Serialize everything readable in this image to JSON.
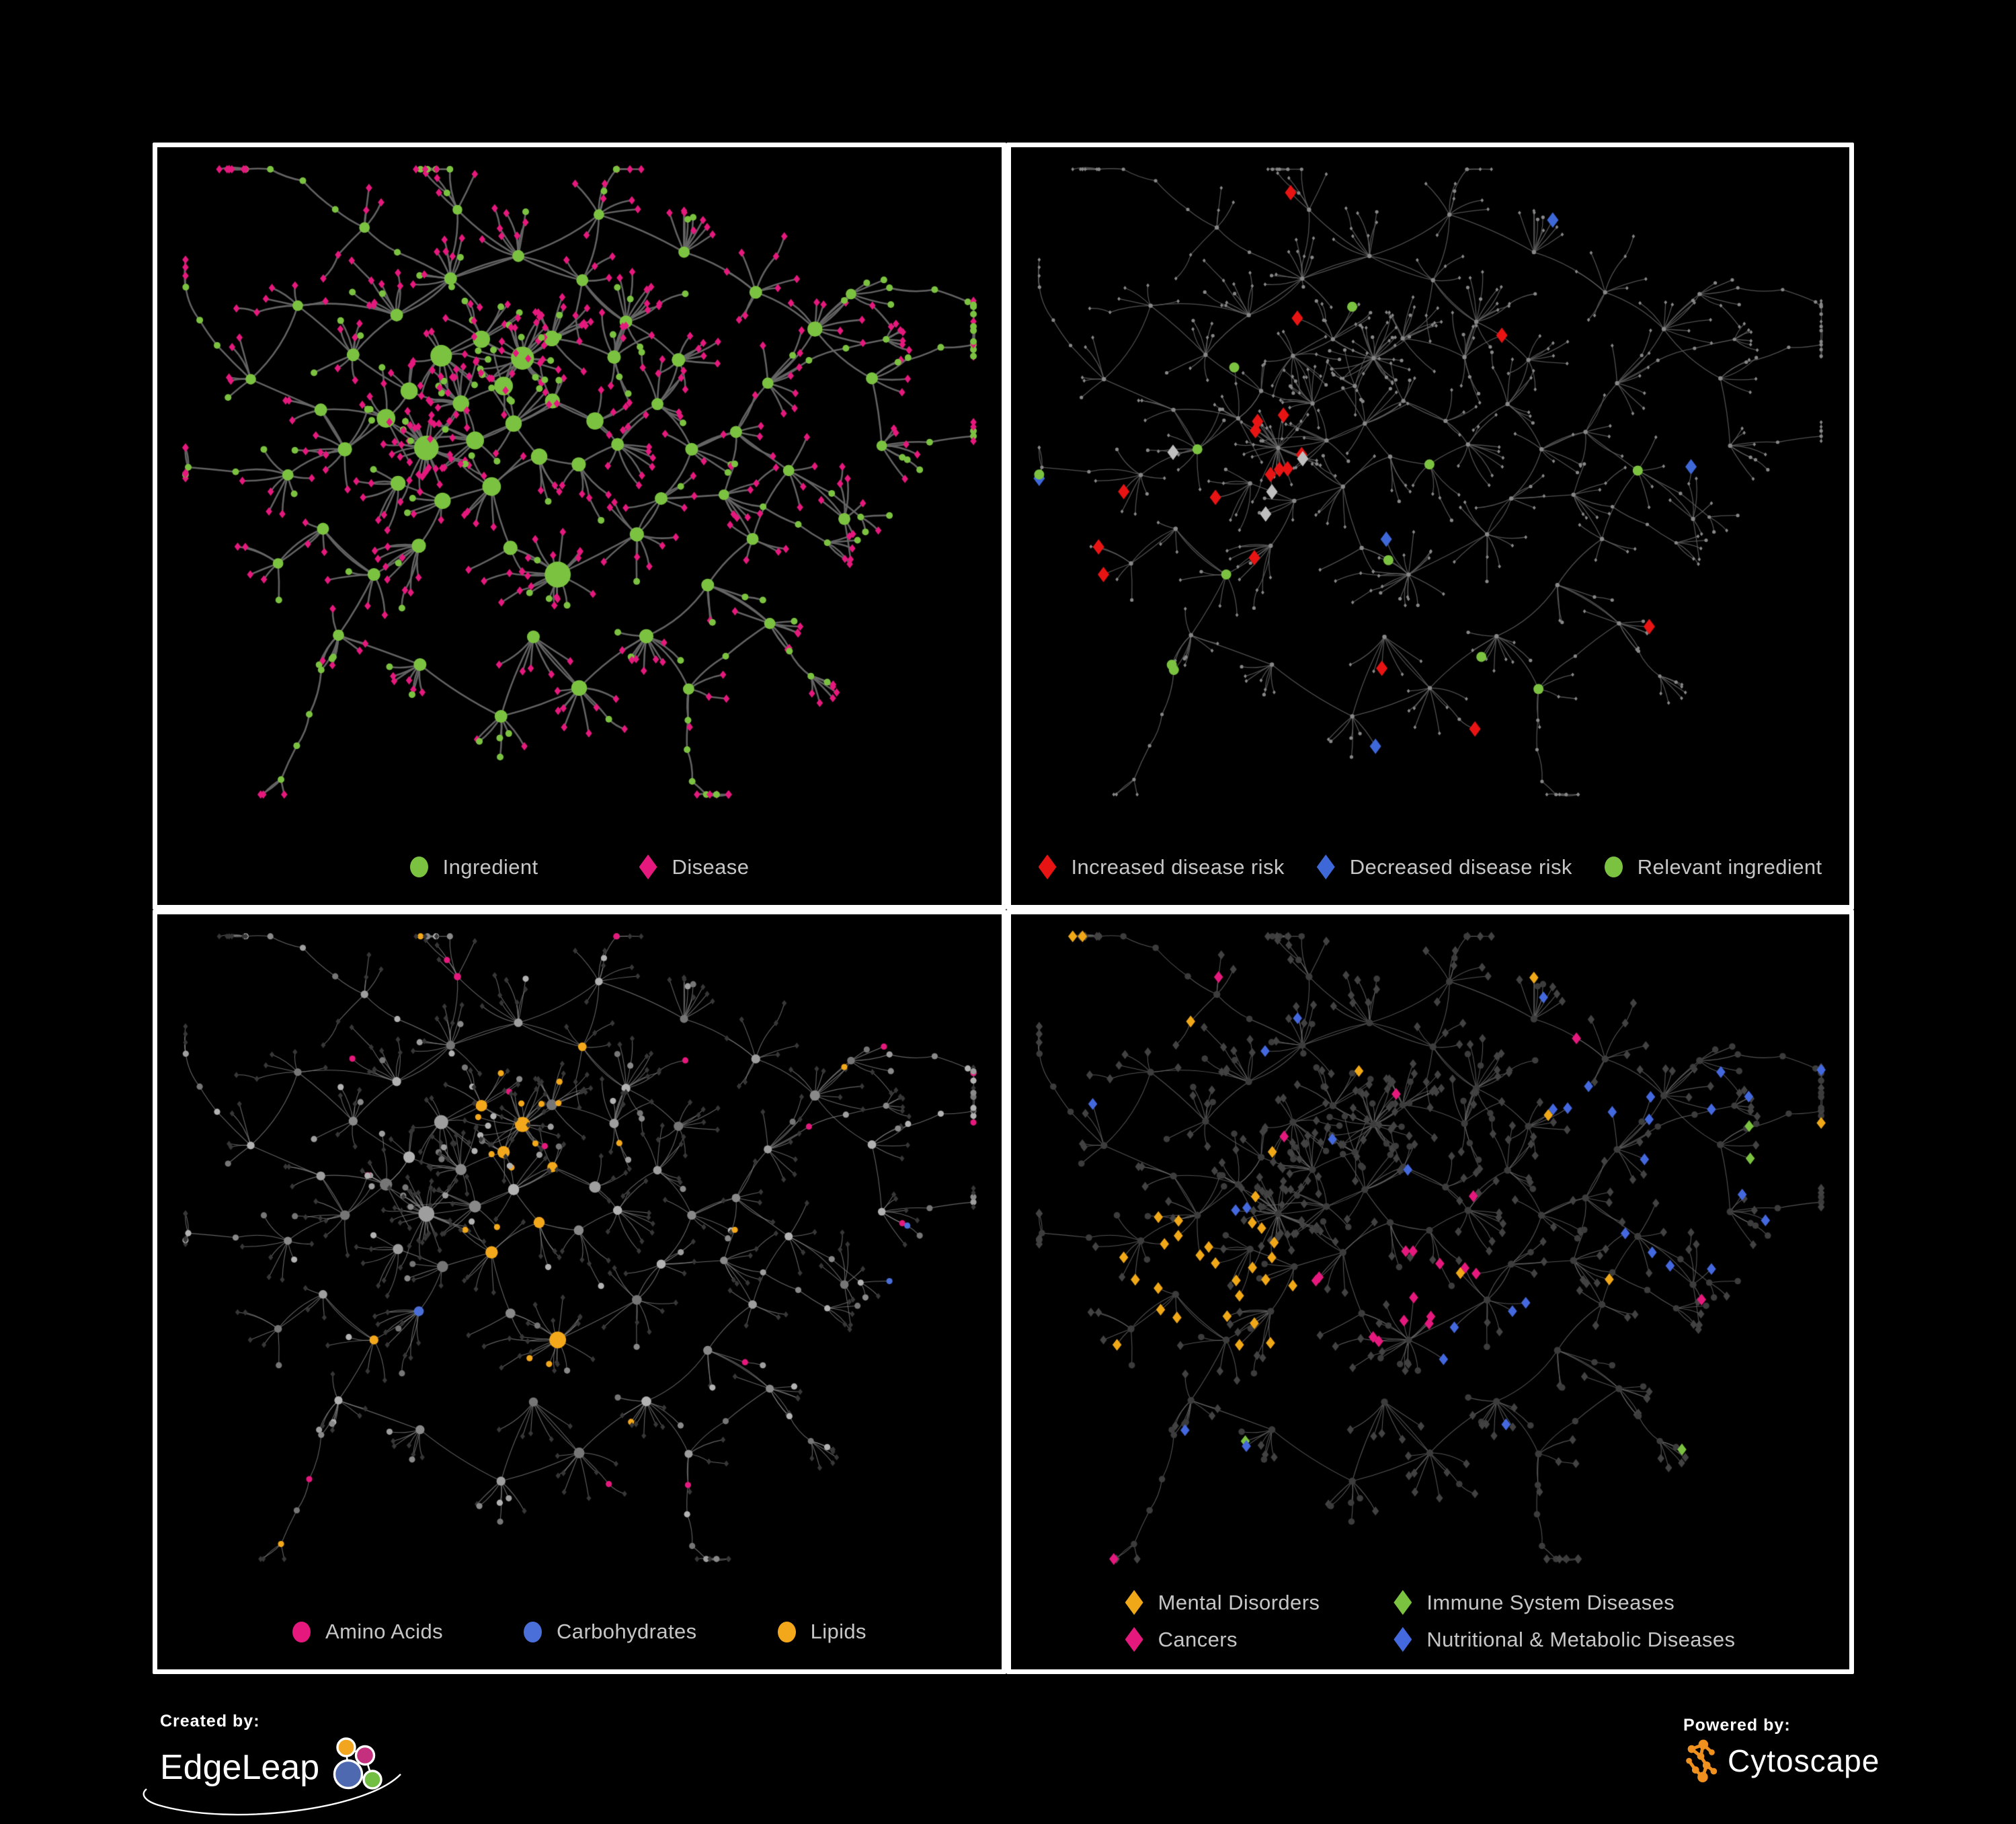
{
  "page": {
    "background": "#000000",
    "panel_border": "#ffffff",
    "legend_text_color": "#c6c6c6"
  },
  "panels": [
    {
      "name": "ingredient-disease-network",
      "legend": [
        {
          "label": "Ingredient",
          "shape": "circle",
          "color": "#7cc241"
        },
        {
          "label": "Disease",
          "shape": "diamond",
          "color": "#e5197d"
        }
      ],
      "render": {
        "edge_color": "#676767",
        "edge_width": 2.6,
        "edge_alpha": 0.95,
        "circle_color": "#7cc241",
        "diamond_color": "#e5197d"
      }
    },
    {
      "name": "disease-risk-network",
      "legend": [
        {
          "label": "Increased disease risk",
          "shape": "diamond",
          "color": "#e81414"
        },
        {
          "label": "Decreased disease risk",
          "shape": "diamond",
          "color": "#3e68d8"
        },
        {
          "label": "Relevant ingredient",
          "shape": "circle",
          "color": "#7cc241"
        }
      ],
      "render": {
        "edge_color": "#5e5e5e",
        "edge_width": 1.3,
        "edge_alpha": 0.85,
        "node_color": "#878787",
        "red_color": "#e81414",
        "blue_color": "#3e68d8",
        "silver_color": "#bfbfbf",
        "green_color": "#7cc241"
      }
    },
    {
      "name": "nutrient-class-network",
      "legend": [
        {
          "label": "Amino Acids",
          "shape": "circle",
          "color": "#e5197d"
        },
        {
          "label": "Carbohydrates",
          "shape": "circle",
          "color": "#4a6fd8"
        },
        {
          "label": "Lipids",
          "shape": "circle",
          "color": "#f3a81c"
        }
      ],
      "render": {
        "edge_color": "#8f8f8f",
        "edge_width": 1.1,
        "edge_alpha": 0.7,
        "diamond_color": "#373737",
        "gray_shades": [
          "#9e9e9e",
          "#898989",
          "#b2b2b2",
          "#767676"
        ],
        "amino_color": "#e5197d",
        "carb_color": "#4a6fd8",
        "lipid_color": "#f3a81c"
      }
    },
    {
      "name": "disease-category-network",
      "legend": [
        {
          "label": "Mental Disorders",
          "shape": "diamond",
          "color": "#f0a818"
        },
        {
          "label": "Immune System Diseases",
          "shape": "diamond",
          "color": "#7cc241"
        },
        {
          "label": "Cancers",
          "shape": "diamond",
          "color": "#e5197d"
        },
        {
          "label": "Nutritional & Metabolic Diseases",
          "shape": "diamond",
          "color": "#4468dd"
        }
      ],
      "render": {
        "edge_color": "#6f6f6f",
        "edge_width": 1.1,
        "edge_alpha": 0.75,
        "circle_color": "#3c3c3c",
        "diamond_color": "#424242",
        "mental_color": "#f0a818",
        "immune_color": "#7cc241",
        "cancer_color": "#e5197d",
        "nutri_color": "#4468dd"
      }
    }
  ],
  "footer": {
    "created_by_label": "Created by:",
    "created_by_brand": "EdgeLeap",
    "powered_by_label": "Powered by:",
    "powered_by_brand": "Cytoscape",
    "edgeleap_logo_colors": {
      "orange": "#f2a51f",
      "magenta": "#c4307e",
      "blue": "#4f69b0",
      "green": "#72bf44"
    },
    "cytoscape_logo_color": "#f0901f"
  }
}
